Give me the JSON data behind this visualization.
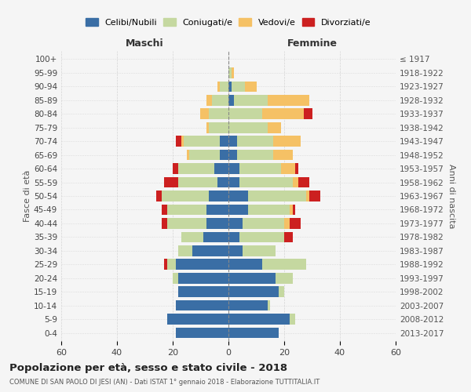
{
  "age_groups": [
    "0-4",
    "5-9",
    "10-14",
    "15-19",
    "20-24",
    "25-29",
    "30-34",
    "35-39",
    "40-44",
    "45-49",
    "50-54",
    "55-59",
    "60-64",
    "65-69",
    "70-74",
    "75-79",
    "80-84",
    "85-89",
    "90-94",
    "95-99",
    "100+"
  ],
  "birth_years": [
    "2013-2017",
    "2008-2012",
    "2003-2007",
    "1998-2002",
    "1993-1997",
    "1988-1992",
    "1983-1987",
    "1978-1982",
    "1973-1977",
    "1968-1972",
    "1963-1967",
    "1958-1962",
    "1953-1957",
    "1948-1952",
    "1943-1947",
    "1938-1942",
    "1933-1937",
    "1928-1932",
    "1923-1927",
    "1918-1922",
    "≤ 1917"
  ],
  "colors": {
    "celibi": "#3a6ea5",
    "coniugati": "#c5d8a0",
    "vedovi": "#f5c165",
    "divorziati": "#cc2020"
  },
  "maschi": {
    "celibi": [
      19,
      22,
      19,
      18,
      18,
      19,
      13,
      9,
      8,
      8,
      7,
      4,
      5,
      3,
      3,
      0,
      0,
      0,
      0,
      0,
      0
    ],
    "coniugati": [
      0,
      0,
      0,
      0,
      2,
      3,
      5,
      8,
      14,
      14,
      17,
      14,
      13,
      11,
      13,
      7,
      7,
      6,
      3,
      0,
      0
    ],
    "vedovi": [
      0,
      0,
      0,
      0,
      0,
      0,
      0,
      0,
      0,
      0,
      0,
      0,
      0,
      1,
      1,
      1,
      3,
      2,
      1,
      0,
      0
    ],
    "divorziati": [
      0,
      0,
      0,
      0,
      0,
      1,
      0,
      0,
      2,
      2,
      2,
      5,
      2,
      0,
      2,
      0,
      0,
      0,
      0,
      0,
      0
    ]
  },
  "femmine": {
    "celibi": [
      18,
      22,
      14,
      18,
      17,
      12,
      5,
      4,
      5,
      7,
      7,
      4,
      4,
      3,
      3,
      0,
      0,
      2,
      1,
      0,
      0
    ],
    "coniugati": [
      0,
      2,
      1,
      2,
      6,
      16,
      12,
      16,
      15,
      15,
      21,
      19,
      15,
      13,
      13,
      14,
      12,
      12,
      5,
      1,
      0
    ],
    "vedovi": [
      0,
      0,
      0,
      0,
      0,
      0,
      0,
      0,
      2,
      1,
      1,
      2,
      5,
      7,
      10,
      5,
      15,
      15,
      4,
      1,
      0
    ],
    "divorziati": [
      0,
      0,
      0,
      0,
      0,
      0,
      0,
      3,
      4,
      1,
      4,
      4,
      1,
      0,
      0,
      0,
      3,
      0,
      0,
      0,
      0
    ]
  },
  "xlim": 60,
  "title": "Popolazione per età, sesso e stato civile - 2018",
  "subtitle": "COMUNE DI SAN PAOLO DI JESI (AN) - Dati ISTAT 1° gennaio 2018 - Elaborazione TUTTITALIA.IT",
  "ylabel_left": "Fasce di età",
  "ylabel_right": "Anni di nascita",
  "xlabel_maschi": "Maschi",
  "xlabel_femmine": "Femmine",
  "background_color": "#f5f5f5",
  "grid_color": "#cccccc"
}
